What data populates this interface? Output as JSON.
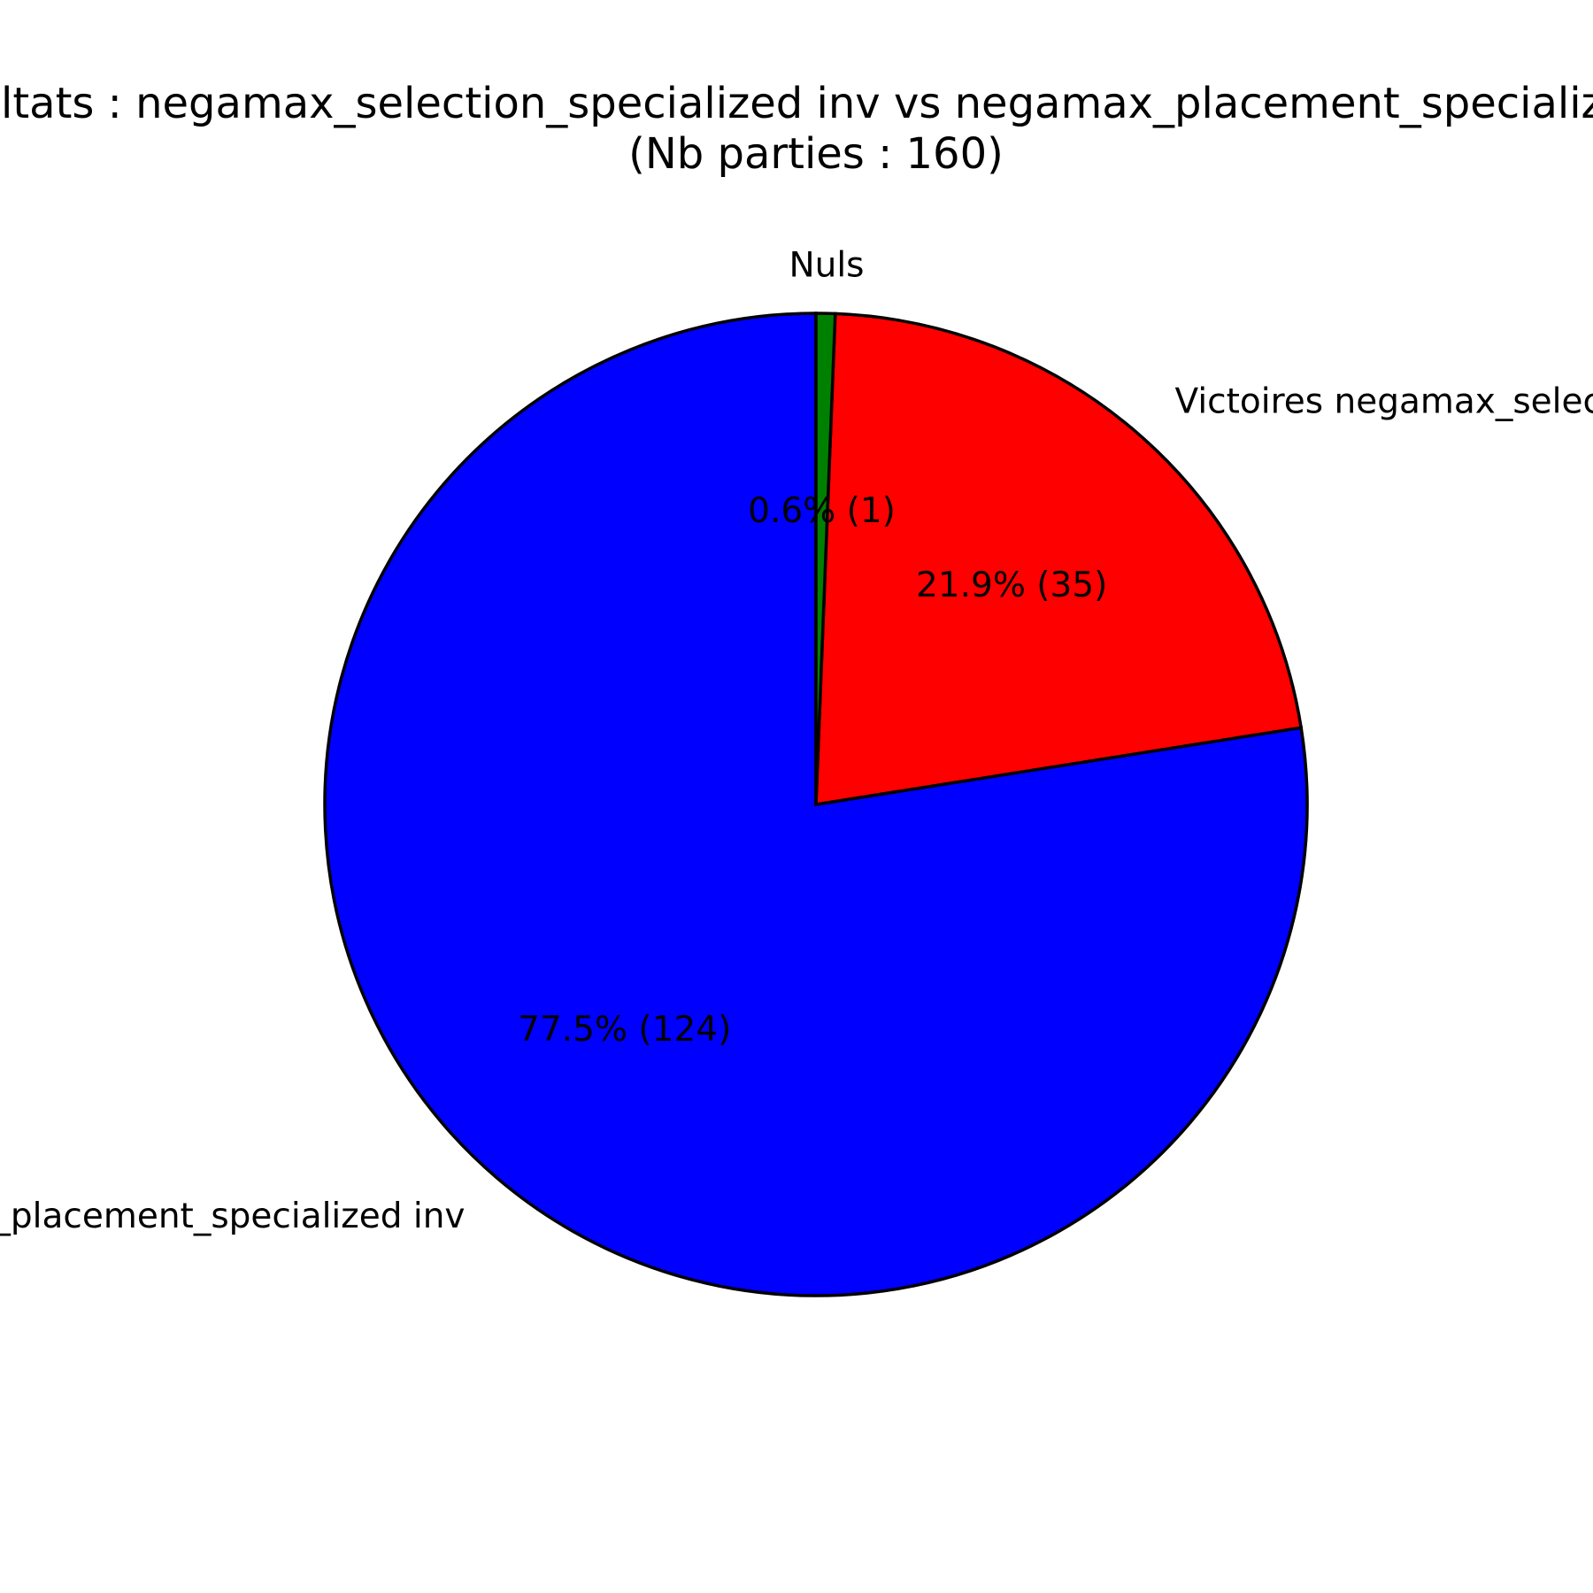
{
  "chart_data": {
    "type": "pie",
    "title_line1": "Résultats : negamax_selection_specialized inv vs negamax_placement_specialized inv",
    "title_line2": "(Nb parties : 160)",
    "total_games": 160,
    "slices": [
      {
        "label": "Victoires negamax_selection_specialized inv",
        "value": 35,
        "percent_label": "21.9% (35)",
        "color": "#ff0000"
      },
      {
        "label": "Victoires negamax_placement_specialized inv",
        "value": 124,
        "percent_label": "77.5% (124)",
        "color": "#0000ff"
      },
      {
        "label": "Nuls",
        "value": 1,
        "percent_label": "0.6% (1)",
        "color": "#008000"
      }
    ],
    "start_angle_deg": 90,
    "direction": "clockwise for red, counterclockwise from green"
  }
}
